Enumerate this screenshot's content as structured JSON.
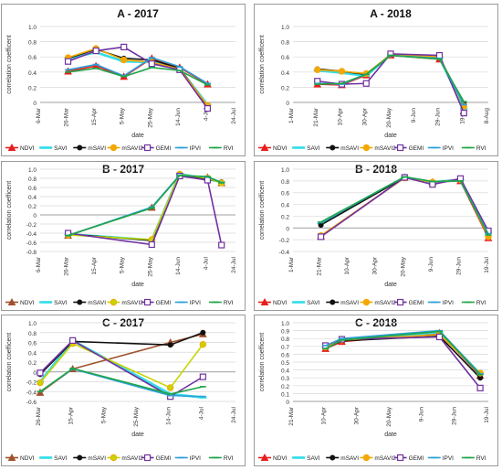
{
  "legend_items": [
    "NDVI",
    "SAVI",
    "mSAVI",
    "mSAVI2",
    "GEMI",
    "IPVI",
    "RVI"
  ],
  "colors": {
    "NDVI": "#e81e1e",
    "SAVI": "#33dde8",
    "mSAVI": "#111111",
    "mSAVI2": "#f2a800",
    "GEMI": "#7030a0",
    "IPVI": "#2e9fd8",
    "RVI": "#1fa64a"
  },
  "colors_b": {
    "NDVI": "#a0522d",
    "SAVI": "#33dde8",
    "mSAVI": "#111111",
    "mSAVI2": "#c8d400",
    "GEMI": "#7030a0",
    "IPVI": "#2e9fd8",
    "RVI": "#1fa64a"
  },
  "chart_data": [
    {
      "type": "line",
      "title": "A - 2017",
      "xlabel": "date",
      "ylabel": "correlation coefficent",
      "x_ticks": [
        "6-Mar",
        "26-Mar",
        "15-Apr",
        "5-May",
        "25-May",
        "14-Jun",
        "4-Jul",
        "24-Jul"
      ],
      "x": [
        "26-Mar",
        "15-Apr",
        "5-May",
        "25-May",
        "14-Jun",
        "4-Jul"
      ],
      "ylim": [
        0,
        1
      ],
      "yticks": [
        0,
        0.2,
        0.4,
        0.6,
        0.8,
        1.0
      ],
      "series": [
        {
          "name": "NDVI",
          "values": [
            0.41,
            0.48,
            0.34,
            0.58,
            0.46,
            0.24
          ]
        },
        {
          "name": "SAVI",
          "values": [
            0.58,
            0.66,
            0.54,
            0.53,
            0.44,
            -0.03
          ]
        },
        {
          "name": "mSAVI",
          "values": [
            0.58,
            0.7,
            0.58,
            0.56,
            0.45,
            -0.05
          ]
        },
        {
          "name": "mSAVI2",
          "values": [
            0.59,
            0.71,
            0.56,
            0.53,
            0.44,
            -0.04
          ]
        },
        {
          "name": "GEMI",
          "values": [
            0.54,
            0.68,
            0.73,
            0.51,
            0.43,
            -0.08
          ]
        },
        {
          "name": "IPVI",
          "values": [
            0.43,
            0.5,
            0.35,
            0.59,
            0.47,
            0.25
          ]
        },
        {
          "name": "RVI",
          "values": [
            0.4,
            0.45,
            0.34,
            0.46,
            0.42,
            0.23
          ]
        }
      ]
    },
    {
      "type": "line",
      "title": "A - 2018",
      "xlabel": "date",
      "ylabel": "correlation coefficent",
      "x_ticks": [
        "1-Mar",
        "21-Mar",
        "10-Apr",
        "30-Apr",
        "20-May",
        "9-Jun",
        "29-Jun",
        "19-Jul",
        "8-Aug"
      ],
      "x": [
        "21-Mar",
        "10-Apr",
        "30-Apr",
        "20-May",
        "29-Jun",
        "19-Jul"
      ],
      "ylim": [
        0,
        1
      ],
      "yticks": [
        0,
        0.2,
        0.4,
        0.6,
        0.8,
        1.0
      ],
      "series": [
        {
          "name": "NDVI",
          "values": [
            0.24,
            0.23,
            0.36,
            0.62,
            0.57,
            -0.05
          ]
        },
        {
          "name": "SAVI",
          "values": [
            0.42,
            0.39,
            0.35,
            0.63,
            0.59,
            -0.08
          ]
        },
        {
          "name": "mSAVI",
          "values": [
            0.44,
            0.41,
            0.37,
            0.63,
            0.59,
            -0.02
          ]
        },
        {
          "name": "mSAVI2",
          "values": [
            0.43,
            0.41,
            0.38,
            0.63,
            0.6,
            -0.05
          ]
        },
        {
          "name": "GEMI",
          "values": [
            0.28,
            0.24,
            0.25,
            0.64,
            0.62,
            -0.14
          ]
        },
        {
          "name": "IPVI",
          "values": [
            0.25,
            0.24,
            0.37,
            0.62,
            0.58,
            -0.03
          ]
        },
        {
          "name": "RVI",
          "values": [
            0.24,
            0.25,
            0.37,
            0.62,
            0.57,
            0.01
          ]
        }
      ]
    },
    {
      "type": "line",
      "title": "B - 2017",
      "xlabel": "date",
      "ylabel": "correlation coefficent",
      "x_ticks": [
        "6-Mar",
        "26-Mar",
        "15-Apr",
        "5-May",
        "25-May",
        "14-Jun",
        "4-Jul",
        "24-Jul"
      ],
      "x": [
        "26-Mar",
        "25-May",
        "14-Jun",
        "4-Jul",
        "14-Jul"
      ],
      "ylim": [
        -0.8,
        1
      ],
      "yticks": [
        -0.8,
        -0.6,
        -0.4,
        -0.2,
        0,
        0.2,
        0.4,
        0.6,
        0.8,
        1.0
      ],
      "series": [
        {
          "name": "NDVI",
          "values": [
            -0.45,
            0.16,
            0.86,
            0.82,
            0.7
          ]
        },
        {
          "name": "SAVI",
          "values": [
            -0.42,
            -0.55,
            0.9,
            0.78,
            0.72
          ]
        },
        {
          "name": "mSAVI",
          "values": [
            -0.42,
            -0.56,
            0.89,
            0.78,
            0.72
          ]
        },
        {
          "name": "mSAVI2",
          "values": [
            -0.44,
            -0.54,
            0.89,
            0.8,
            0.7
          ]
        },
        {
          "name": "GEMI",
          "values": [
            -0.4,
            -0.65,
            0.85,
            0.76,
            -0.66
          ]
        },
        {
          "name": "IPVI",
          "values": [
            -0.45,
            0.17,
            0.87,
            0.83,
            0.71
          ]
        },
        {
          "name": "RVI",
          "values": [
            -0.45,
            0.15,
            0.86,
            0.84,
            0.7
          ]
        }
      ]
    },
    {
      "type": "line",
      "title": "B - 2018",
      "xlabel": "date",
      "ylabel": "correlation coefficent",
      "x_ticks": [
        "1-Mar",
        "21-Mar",
        "10-Apr",
        "30-Apr",
        "20-May",
        "9-Jun",
        "29-Jun",
        "19-Jul"
      ],
      "x": [
        "21-Mar",
        "20-May",
        "9-Jun",
        "29-Jun",
        "19-Jul"
      ],
      "ylim": [
        -0.4,
        1
      ],
      "yticks": [
        -0.4,
        -0.2,
        0,
        0.2,
        0.4,
        0.6,
        0.8,
        1.0
      ],
      "series": [
        {
          "name": "NDVI",
          "values": [
            -0.14,
            0.86,
            0.78,
            0.8,
            -0.17
          ]
        },
        {
          "name": "SAVI",
          "values": [
            0.08,
            0.86,
            0.78,
            0.82,
            -0.08
          ]
        },
        {
          "name": "mSAVI",
          "values": [
            0.05,
            0.86,
            0.78,
            0.82,
            -0.12
          ]
        },
        {
          "name": "mSAVI2",
          "values": [
            -0.13,
            0.85,
            0.78,
            0.82,
            -0.15
          ]
        },
        {
          "name": "GEMI",
          "values": [
            -0.15,
            0.86,
            0.74,
            0.84,
            -0.05
          ]
        },
        {
          "name": "IPVI",
          "values": [
            0.09,
            0.87,
            0.79,
            0.8,
            -0.1
          ]
        },
        {
          "name": "RVI",
          "values": [
            0.1,
            0.87,
            0.79,
            0.8,
            -0.12
          ]
        }
      ]
    },
    {
      "type": "line",
      "title": "C - 2017",
      "xlabel": "date",
      "ylabel": "correlation coefficent",
      "x_ticks": [
        "26-Mar",
        "15-Apr",
        "5-May",
        "25-May",
        "14-Jun",
        "4-Jul",
        "24-Jul"
      ],
      "x": [
        "26-Mar",
        "15-Apr",
        "25-Apr",
        "14-Jun",
        "4-Jul"
      ],
      "ylim": [
        -0.6,
        1
      ],
      "yticks": [
        -0.6,
        -0.4,
        -0.2,
        0,
        0.2,
        0.4,
        0.6,
        0.8,
        1.0
      ],
      "series": [
        {
          "name": "NDVI",
          "values": [
            -0.42,
            0.06,
            null,
            0.6,
            0.77
          ]
        },
        {
          "name": "SAVI",
          "values": [
            -0.2,
            0.64,
            null,
            -0.45,
            -0.52
          ]
        },
        {
          "name": "mSAVI",
          "values": [
            -0.05,
            0.62,
            null,
            0.55,
            0.8
          ]
        },
        {
          "name": "mSAVI2",
          "values": [
            -0.22,
            0.58,
            null,
            -0.32,
            0.56
          ]
        },
        {
          "name": "GEMI",
          "values": [
            -0.02,
            0.64,
            null,
            -0.5,
            -0.1
          ]
        },
        {
          "name": "IPVI",
          "values": [
            -0.4,
            0.06,
            null,
            -0.48,
            -0.5
          ]
        },
        {
          "name": "RVI",
          "values": [
            -0.4,
            0.07,
            null,
            -0.45,
            -0.3
          ]
        }
      ]
    },
    {
      "type": "line",
      "title": "C - 2018",
      "xlabel": "date",
      "ylabel": "correlation coefficent",
      "x_ticks": [
        "21-Mar",
        "10-Apr",
        "30-Apr",
        "20-May",
        "9-Jun",
        "29-Jun",
        "19-Jul"
      ],
      "x": [
        "10-Apr",
        "20-Apr",
        "19-Jun",
        "14-Jul"
      ],
      "ylim": [
        0,
        1
      ],
      "yticks": [
        0,
        0.1,
        0.2,
        0.3,
        0.4,
        0.5,
        0.6,
        0.7,
        0.8,
        0.9,
        1.0
      ],
      "series": [
        {
          "name": "NDVI",
          "values": [
            0.67,
            0.76,
            0.87,
            0.33
          ]
        },
        {
          "name": "SAVI",
          "values": [
            0.7,
            0.78,
            0.88,
            0.35
          ]
        },
        {
          "name": "mSAVI",
          "values": [
            0.68,
            0.77,
            0.83,
            0.3
          ]
        },
        {
          "name": "mSAVI2",
          "values": [
            0.69,
            0.78,
            0.85,
            0.36
          ]
        },
        {
          "name": "GEMI",
          "values": [
            0.71,
            0.79,
            0.82,
            0.17
          ]
        },
        {
          "name": "IPVI",
          "values": [
            0.71,
            0.8,
            0.9,
            0.35
          ]
        },
        {
          "name": "RVI",
          "values": [
            0.67,
            0.78,
            0.89,
            0.34
          ]
        }
      ]
    }
  ]
}
